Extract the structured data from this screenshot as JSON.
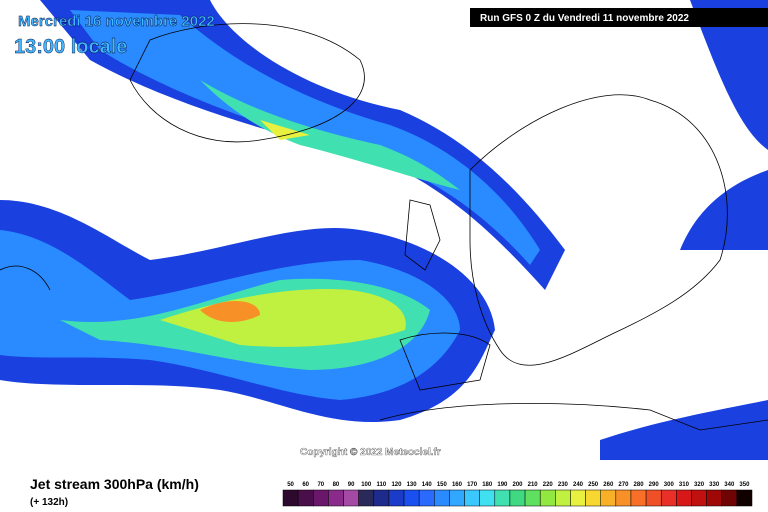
{
  "header": {
    "date": "Mercredi 16 novembre 2022",
    "time": "13:00 locale",
    "run": "Run GFS 0 Z du Vendredi 11 novembre 2022"
  },
  "copyright": "Copyright © 2022 Meteociel.fr",
  "footer": {
    "title": "Jet stream 300hPa (km/h)",
    "lead": "(+ 132h)"
  },
  "legend": {
    "labels": [
      50,
      60,
      70,
      80,
      90,
      100,
      110,
      120,
      130,
      140,
      150,
      160,
      170,
      180,
      190,
      200,
      210,
      220,
      230,
      240,
      250,
      260,
      270,
      280,
      290,
      300,
      310,
      320,
      330,
      340,
      350
    ],
    "colors": [
      "#2d0a2d",
      "#4a0f4a",
      "#6a166a",
      "#8a2a8a",
      "#a44aa4",
      "#2a2a5a",
      "#1e2a8c",
      "#1a3cc8",
      "#1a50f0",
      "#2a6aff",
      "#2a8aff",
      "#30a8ff",
      "#3ac8ff",
      "#40e0f0",
      "#40e0b0",
      "#40d880",
      "#60e060",
      "#90e840",
      "#c0f040",
      "#e8f040",
      "#f8d830",
      "#f8b028",
      "#f89028",
      "#f87028",
      "#f05028",
      "#e83028",
      "#d81818",
      "#c01010",
      "#a00808",
      "#700404",
      "#100000"
    ]
  }
}
